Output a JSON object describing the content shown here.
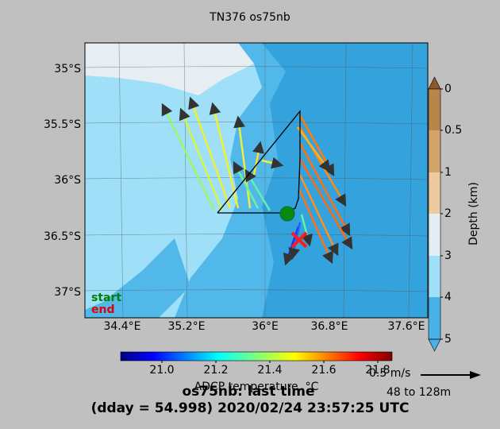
{
  "title": "TN376 os75nb",
  "map": {
    "lat_labels": [
      "35°S",
      "35.5°S",
      "36°S",
      "36.5°S",
      "37°S"
    ],
    "lon_labels": [
      "34.4°E",
      "35.2°E",
      "36°E",
      "36.8°E",
      "37.6°E"
    ],
    "legend": {
      "start": "start",
      "end": "end"
    }
  },
  "depth_colorbar": {
    "ticks": [
      "0",
      "0.5",
      "1",
      "2",
      "3",
      "4",
      "5"
    ],
    "label": "Depth (km)"
  },
  "temperature_colorbar": {
    "ticks": [
      "21.0",
      "21.2",
      "21.4",
      "21.6",
      "21.8"
    ],
    "label": "ADCP temperature, °C"
  },
  "scale": {
    "arrow_label": "0.5 m/s",
    "depth_range": "48 to 128m"
  },
  "footer": {
    "line1": "os75nb: last time",
    "line2": "(dday = 54.998) 2020/02/24 23:57:25 UTC"
  }
}
